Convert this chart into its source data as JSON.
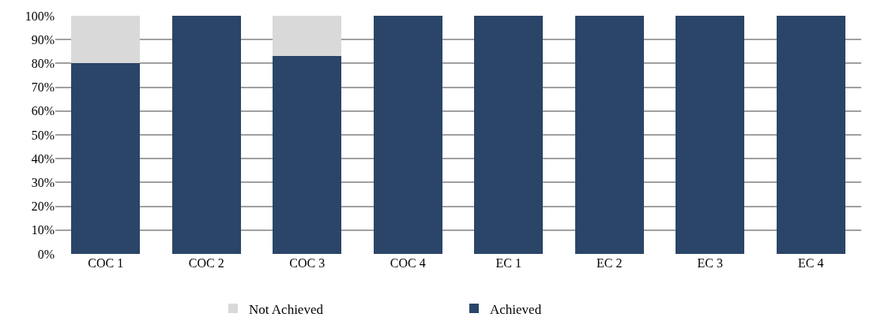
{
  "chart_data": {
    "type": "bar",
    "stacked": true,
    "categories": [
      "COC 1",
      "COC 2",
      "COC 3",
      "COC 4",
      "EC 1",
      "EC 2",
      "EC 3",
      "EC 4"
    ],
    "series": [
      {
        "name": "Achieved",
        "color": "#2a4568",
        "values": [
          80,
          100,
          83,
          100,
          100,
          100,
          100,
          100
        ]
      },
      {
        "name": "Not Achieved",
        "color": "#d9d9d9",
        "values": [
          20,
          0,
          17,
          0,
          0,
          0,
          0,
          0
        ]
      }
    ],
    "ylim": [
      0,
      100
    ],
    "yticks": [
      {
        "value": 0,
        "label": "0%"
      },
      {
        "value": 10,
        "label": "10%"
      },
      {
        "value": 20,
        "label": "20%"
      },
      {
        "value": 30,
        "label": "30%"
      },
      {
        "value": 40,
        "label": "40%"
      },
      {
        "value": 50,
        "label": "50%"
      },
      {
        "value": 60,
        "label": "60%"
      },
      {
        "value": 70,
        "label": "70%"
      },
      {
        "value": 80,
        "label": "80%"
      },
      {
        "value": 90,
        "label": "90%"
      },
      {
        "value": 100,
        "label": "100%"
      }
    ],
    "grid": "y",
    "legend": "bottom"
  }
}
